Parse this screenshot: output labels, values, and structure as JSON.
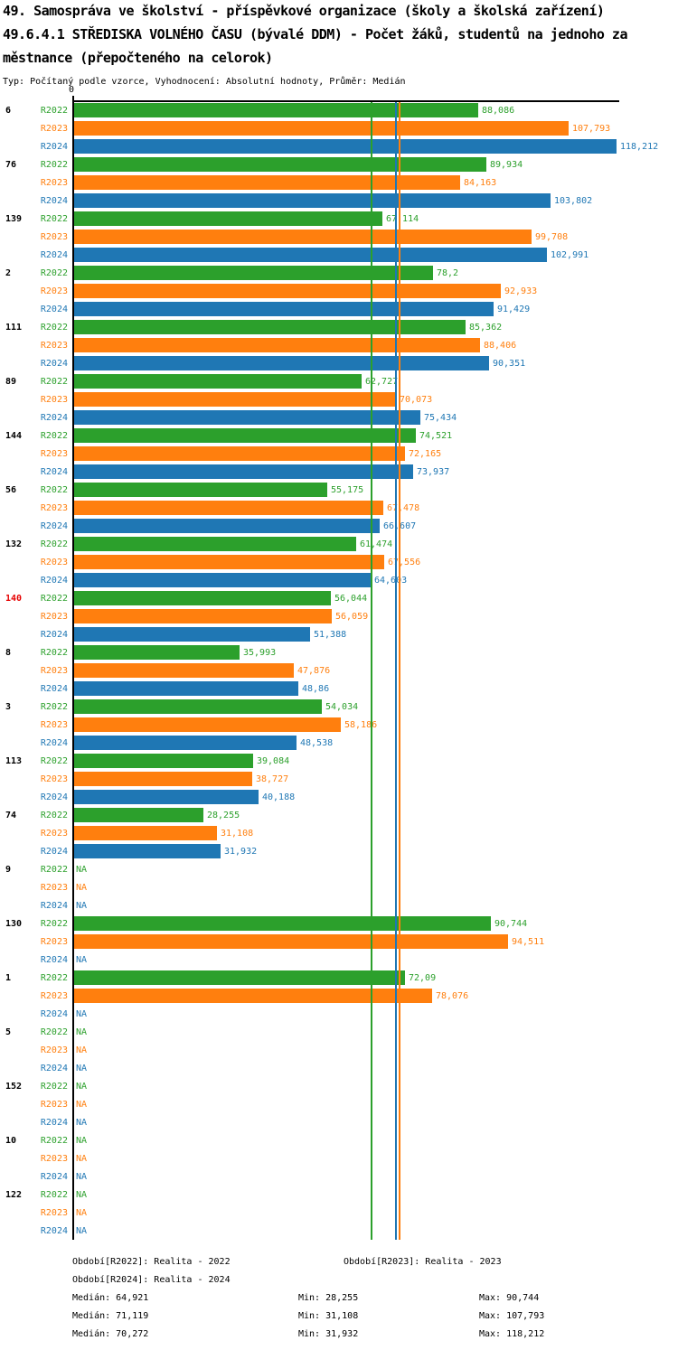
{
  "title": {
    "line1": "49. Samospráva ve školství - příspěvkové organizace (školy a školská zařízení)",
    "line2": "49.6.4.1 STŘEDISKA VOLNÉHO ČASU (bývalé DDM) - Počet žáků, studentů na jednoho za",
    "line3": "městnance (přepočteného na celorok)",
    "meta": "Typ: Počítaný podle vzorce, Vyhodnocení: Absolutní hodnoty, Průměr: Medián"
  },
  "axis": {
    "zero_label": "0"
  },
  "na_label": "NA",
  "colors": {
    "r2022": "#2ca02c",
    "r2023": "#ff7f0e",
    "r2024": "#1f77b4",
    "highlight": "#e60000",
    "axis": "#000000"
  },
  "chart_data": {
    "type": "bar",
    "orientation": "horizontal-grouped",
    "series": [
      "R2022",
      "R2023",
      "R2024"
    ],
    "x_range": [
      0,
      119.2
    ],
    "grid": false,
    "legend_position": "bottom",
    "highlighted_category": "140",
    "categories": [
      "6",
      "76",
      "139",
      "2",
      "111",
      "89",
      "144",
      "56",
      "132",
      "140",
      "8",
      "3",
      "113",
      "74",
      "9",
      "130",
      "1",
      "5",
      "152",
      "10",
      "122"
    ],
    "groups": [
      {
        "category": "6",
        "values": [
          88.086,
          107.793,
          118.212
        ],
        "labels": [
          "88,086",
          "107,793",
          "118,212"
        ]
      },
      {
        "category": "76",
        "values": [
          89.934,
          84.163,
          103.802
        ],
        "labels": [
          "89,934",
          "84,163",
          "103,802"
        ]
      },
      {
        "category": "139",
        "values": [
          67.114,
          99.708,
          102.991
        ],
        "labels": [
          "67,114",
          "99,708",
          "102,991"
        ]
      },
      {
        "category": "2",
        "values": [
          78.2,
          92.933,
          91.429
        ],
        "labels": [
          "78,2",
          "92,933",
          "91,429"
        ]
      },
      {
        "category": "111",
        "values": [
          85.362,
          88.406,
          90.351
        ],
        "labels": [
          "85,362",
          "88,406",
          "90,351"
        ]
      },
      {
        "category": "89",
        "values": [
          62.727,
          70.073,
          75.434
        ],
        "labels": [
          "62,727",
          "70,073",
          "75,434"
        ]
      },
      {
        "category": "144",
        "values": [
          74.521,
          72.165,
          73.937
        ],
        "labels": [
          "74,521",
          "72,165",
          "73,937"
        ]
      },
      {
        "category": "56",
        "values": [
          55.175,
          67.478,
          66.607
        ],
        "labels": [
          "55,175",
          "67,478",
          "66,607"
        ]
      },
      {
        "category": "132",
        "values": [
          61.474,
          67.556,
          64.603
        ],
        "labels": [
          "61,474",
          "67,556",
          "64,603"
        ]
      },
      {
        "category": "140",
        "values": [
          56.044,
          56.059,
          51.388
        ],
        "labels": [
          "56,044",
          "56,059",
          "51,388"
        ]
      },
      {
        "category": "8",
        "values": [
          35.993,
          47.876,
          48.86
        ],
        "labels": [
          "35,993",
          "47,876",
          "48,86"
        ]
      },
      {
        "category": "3",
        "values": [
          54.034,
          58.186,
          48.538
        ],
        "labels": [
          "54,034",
          "58,186",
          "48,538"
        ]
      },
      {
        "category": "113",
        "values": [
          39.084,
          38.727,
          40.188
        ],
        "labels": [
          "39,084",
          "38,727",
          "40,188"
        ]
      },
      {
        "category": "74",
        "values": [
          28.255,
          31.108,
          31.932
        ],
        "labels": [
          "28,255",
          "31,108",
          "31,932"
        ]
      },
      {
        "category": "9",
        "values": [
          null,
          null,
          null
        ],
        "labels": [
          "NA",
          "NA",
          "NA"
        ]
      },
      {
        "category": "130",
        "values": [
          90.744,
          94.511,
          null
        ],
        "labels": [
          "90,744",
          "94,511",
          "NA"
        ]
      },
      {
        "category": "1",
        "values": [
          72.09,
          78.076,
          null
        ],
        "labels": [
          "72,09",
          "78,076",
          "NA"
        ]
      },
      {
        "category": "5",
        "values": [
          null,
          null,
          null
        ],
        "labels": [
          "NA",
          "NA",
          "NA"
        ]
      },
      {
        "category": "152",
        "values": [
          null,
          null,
          null
        ],
        "labels": [
          "NA",
          "NA",
          "NA"
        ]
      },
      {
        "category": "10",
        "values": [
          null,
          null,
          null
        ],
        "labels": [
          "NA",
          "NA",
          "NA"
        ]
      },
      {
        "category": "122",
        "values": [
          null,
          null,
          null
        ],
        "labels": [
          "NA",
          "NA",
          "NA"
        ]
      }
    ],
    "medians": [
      64.921,
      71.119,
      70.272
    ],
    "stats": {
      "R2022": {
        "median": 64.921,
        "min": 28.255,
        "max": 90.744
      },
      "R2023": {
        "median": 71.119,
        "min": 31.108,
        "max": 107.793
      },
      "R2024": {
        "median": 70.272,
        "min": 31.932,
        "max": 118.212
      }
    }
  },
  "legend": {
    "r2022": "Období[R2022]: Realita - 2022",
    "r2023": "Období[R2023]: Realita - 2023",
    "r2024": "Období[R2024]: Realita - 2024"
  },
  "stats_text": {
    "r2022": {
      "median": "Medián: 64,921",
      "min": "Min: 28,255",
      "max": "Max: 90,744"
    },
    "r2023": {
      "median": "Medián: 71,119",
      "min": "Min: 31,108",
      "max": "Max: 107,793"
    },
    "r2024": {
      "median": "Medián: 70,272",
      "min": "Min: 31,932",
      "max": "Max: 118,212"
    }
  }
}
